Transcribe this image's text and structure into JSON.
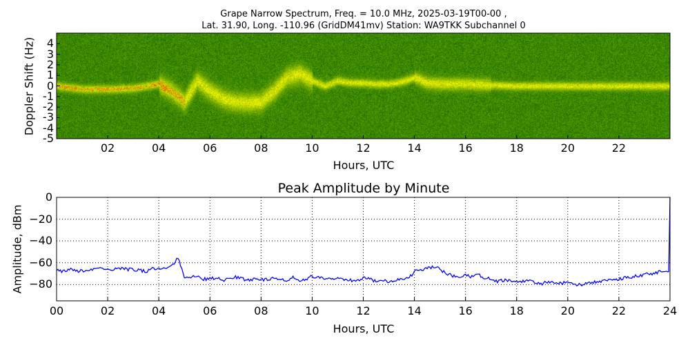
{
  "chart_data": [
    {
      "type": "heatmap",
      "title_line1": "Grape Narrow Spectrum, Freq. = 10.0 MHz, 2025-03-19T00-00 ,",
      "title_line2": "Lat.  31.90, Long. -110.96 (GridDM41mv) Station: WA9TKK Subchannel 0",
      "xlabel": "Hours, UTC",
      "ylabel": "Doppler Shift (Hz)",
      "xlim": [
        0,
        24
      ],
      "ylim": [
        -5,
        5
      ],
      "xticks": [
        2,
        4,
        6,
        8,
        10,
        12,
        14,
        16,
        18,
        20,
        22
      ],
      "xtick_labels": [
        "02",
        "04",
        "06",
        "08",
        "10",
        "12",
        "14",
        "16",
        "18",
        "20",
        "22"
      ],
      "yticks": [
        4,
        3,
        2,
        1,
        0,
        -1,
        -2,
        -3,
        -4,
        -5
      ],
      "ytick_labels": [
        "4",
        "3",
        "2",
        "1",
        "0",
        "-1",
        "-2",
        "-3",
        "-4",
        "-5"
      ],
      "doppler_trace_hours": [
        0,
        1,
        2,
        3,
        4,
        4.5,
        5,
        5.5,
        6,
        6.5,
        7,
        7.5,
        8,
        8.5,
        9,
        9.5,
        10,
        10.5,
        11,
        11.5,
        12,
        12.5,
        13,
        13.5,
        14,
        14.5,
        15,
        16,
        17,
        18,
        19,
        20,
        21,
        22,
        23,
        24
      ],
      "doppler_trace_hz": [
        0,
        -0.3,
        -0.3,
        -0.2,
        0.2,
        -0.5,
        -1.5,
        0.5,
        -0.5,
        -1.2,
        -1.5,
        -1.6,
        -1.5,
        -0.5,
        0.8,
        1.2,
        0.5,
        0,
        0.5,
        0.3,
        0.3,
        0.2,
        0.2,
        0.4,
        0.8,
        0.3,
        0.2,
        0.2,
        0.1,
        0,
        0,
        0,
        0,
        0,
        0,
        0
      ]
    },
    {
      "type": "line",
      "title": "Peak Amplitude by Minute",
      "xlabel": "Hours, UTC",
      "ylabel": "Amplitude, dBm",
      "xlim": [
        0,
        24
      ],
      "ylim": [
        -95,
        0
      ],
      "grid": true,
      "xticks": [
        0,
        2,
        4,
        6,
        8,
        10,
        12,
        14,
        16,
        18,
        20,
        22,
        24
      ],
      "xtick_labels": [
        "00",
        "02",
        "04",
        "06",
        "08",
        "10",
        "12",
        "14",
        "16",
        "18",
        "20",
        "22",
        "24"
      ],
      "yticks": [
        0,
        -20,
        -40,
        -60,
        -80
      ],
      "ytick_labels": [
        "0",
        "−20",
        "−40",
        "−60",
        "−80"
      ],
      "series": [
        {
          "name": "Peak Amplitude",
          "color": "#0000ff",
          "x_step_hours": 0.25,
          "values": [
            -67,
            -68,
            -66,
            -68,
            -67,
            -67,
            -66,
            -64,
            -67,
            -66,
            -65,
            -66,
            -66,
            -67,
            -68,
            -65,
            -65,
            -64,
            -63,
            -56,
            -73,
            -74,
            -72,
            -75,
            -75,
            -74,
            -76,
            -75,
            -73,
            -75,
            -76,
            -75,
            -76,
            -75,
            -74,
            -76,
            -76,
            -73,
            -76,
            -76,
            -72,
            -74,
            -75,
            -74,
            -75,
            -76,
            -76,
            -77,
            -74,
            -75,
            -77,
            -76,
            -77,
            -76,
            -74,
            -75,
            -68,
            -66,
            -65,
            -64,
            -66,
            -70,
            -72,
            -73,
            -72,
            -73,
            -71,
            -74,
            -75,
            -77,
            -76,
            -77,
            -78,
            -77,
            -76,
            -78,
            -79,
            -78,
            -78,
            -79,
            -77,
            -80,
            -80,
            -79,
            -78,
            -77,
            -76,
            -76,
            -75,
            -74,
            -73,
            -72,
            -71,
            -70,
            -69,
            -68,
            0
          ]
        }
      ]
    }
  ]
}
